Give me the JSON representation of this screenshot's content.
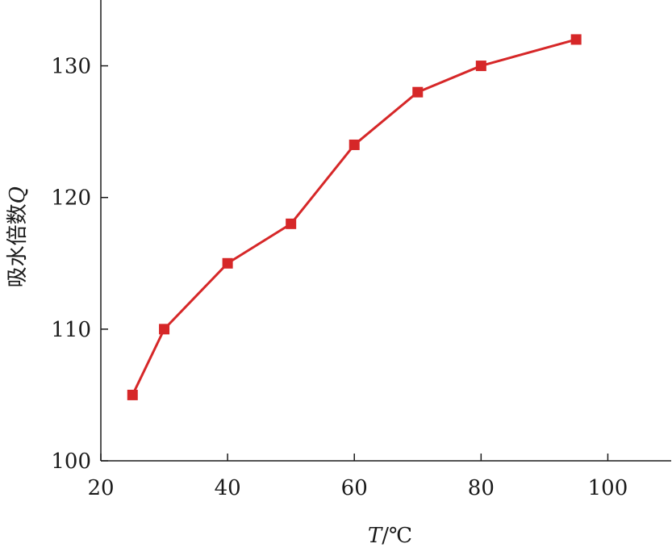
{
  "chart_data": {
    "type": "line",
    "xlabel": "T/℃",
    "xlabel_parts": {
      "var": "T",
      "sep": "/",
      "unit": "℃"
    },
    "ylabel": "吸水倍数Q",
    "ylabel_parts": {
      "text": "吸水倍数",
      "var": "Q"
    },
    "xlim": [
      20,
      110
    ],
    "ylim": [
      100,
      135
    ],
    "xticks": [
      20,
      40,
      60,
      80,
      100
    ],
    "yticks": [
      100,
      110,
      120,
      130
    ],
    "grid": false,
    "legend": "none",
    "series": [
      {
        "color": "#d62728",
        "marker": "square",
        "x": [
          25,
          30,
          40,
          50,
          60,
          70,
          80,
          95
        ],
        "y": [
          105,
          110,
          115,
          118,
          124,
          128,
          130,
          132
        ]
      }
    ]
  }
}
